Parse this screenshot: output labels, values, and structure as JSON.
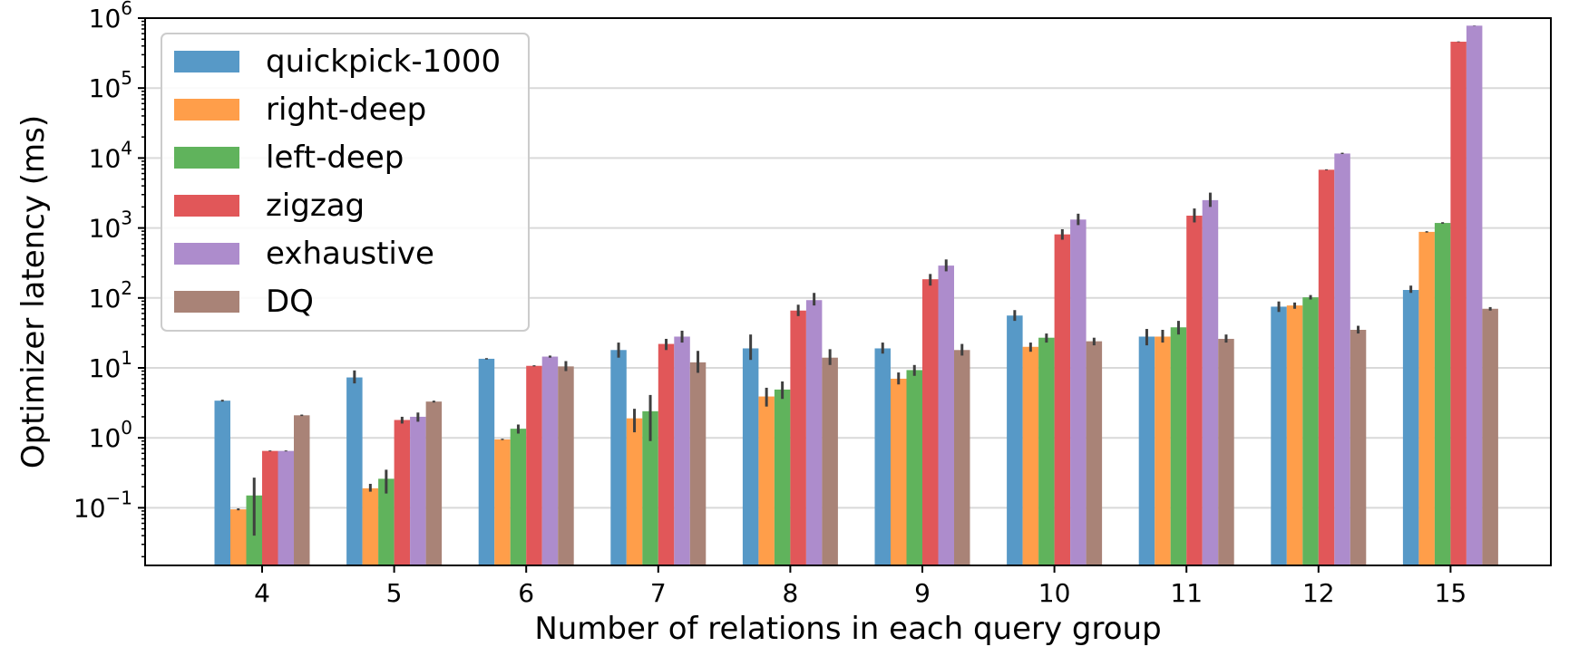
{
  "chart_data": {
    "type": "bar",
    "xlabel": "Number of relations in each query group",
    "ylabel": "Optimizer latency (ms)",
    "yscale": "log",
    "ylim": [
      0.015,
      1000000
    ],
    "ytick_base": "10",
    "yticks": [
      {
        "exp": "−1",
        "value": 0.1
      },
      {
        "exp": "0",
        "value": 1
      },
      {
        "exp": "1",
        "value": 10
      },
      {
        "exp": "2",
        "value": 100
      },
      {
        "exp": "3",
        "value": 1000
      },
      {
        "exp": "4",
        "value": 10000
      },
      {
        "exp": "5",
        "value": 100000
      },
      {
        "exp": "6",
        "value": 1000000
      }
    ],
    "grid": "horizontal",
    "legend_position": "top-left",
    "categories": [
      "4",
      "5",
      "6",
      "7",
      "8",
      "9",
      "10",
      "11",
      "12",
      "15"
    ],
    "series": [
      {
        "name": "quickpick-1000",
        "color": "#5799c7",
        "values": [
          3.4,
          7.3,
          13.5,
          18,
          19,
          19,
          56,
          28,
          75,
          130
        ],
        "err_low": [
          3.3,
          6.0,
          13.2,
          14,
          13,
          16,
          47,
          21,
          63,
          118
        ],
        "err_high": [
          3.5,
          9.2,
          13.8,
          23,
          30,
          23,
          67,
          36,
          89,
          150
        ]
      },
      {
        "name": "right-deep",
        "color": "#ff9e4a",
        "values": [
          0.095,
          0.19,
          0.95,
          1.9,
          3.9,
          7,
          20,
          28,
          78,
          880
        ],
        "err_low": [
          0.092,
          0.17,
          0.93,
          1.2,
          2.8,
          5.8,
          17,
          23,
          70,
          860
        ],
        "err_high": [
          0.098,
          0.22,
          0.97,
          2.6,
          5.2,
          8.6,
          23,
          35,
          86,
          900
        ]
      },
      {
        "name": "left-deep",
        "color": "#60b35c",
        "values": [
          0.15,
          0.26,
          1.35,
          2.4,
          4.9,
          9.3,
          27,
          38,
          102,
          1180
        ],
        "err_low": [
          0.04,
          0.16,
          1.15,
          0.9,
          3.6,
          7.7,
          23,
          30,
          95,
          1150
        ],
        "err_high": [
          0.27,
          0.35,
          1.55,
          4.1,
          6.4,
          11,
          31,
          47,
          110,
          1210
        ]
      },
      {
        "name": "zigzag",
        "color": "#e15759",
        "values": [
          0.65,
          1.8,
          10.7,
          22,
          66,
          185,
          810,
          1500,
          6800,
          460000
        ],
        "err_low": [
          0.64,
          1.6,
          10.5,
          18,
          55,
          150,
          680,
          1200,
          6700,
          455000
        ],
        "err_high": [
          0.66,
          2.0,
          10.9,
          26,
          80,
          220,
          960,
          1900,
          6900,
          465000
        ]
      },
      {
        "name": "exhaustive",
        "color": "#ad8ccc",
        "values": [
          0.65,
          2.0,
          14.5,
          28,
          93,
          290,
          1320,
          2500,
          11600,
          780000
        ],
        "err_low": [
          0.64,
          1.7,
          14.0,
          23,
          78,
          240,
          1100,
          2000,
          11400,
          775000
        ],
        "err_high": [
          0.66,
          2.3,
          15.0,
          34,
          118,
          355,
          1600,
          3200,
          11900,
          785000
        ]
      },
      {
        "name": "DQ",
        "color": "#a98377",
        "values": [
          2.1,
          3.3,
          10.5,
          12,
          14,
          18,
          24,
          26,
          35,
          70
        ],
        "err_low": [
          2.05,
          3.2,
          9.0,
          8.5,
          11,
          15,
          21,
          23,
          31,
          66
        ],
        "err_high": [
          2.15,
          3.4,
          12.5,
          17.5,
          18.5,
          22,
          27,
          30,
          40,
          74
        ]
      }
    ]
  }
}
